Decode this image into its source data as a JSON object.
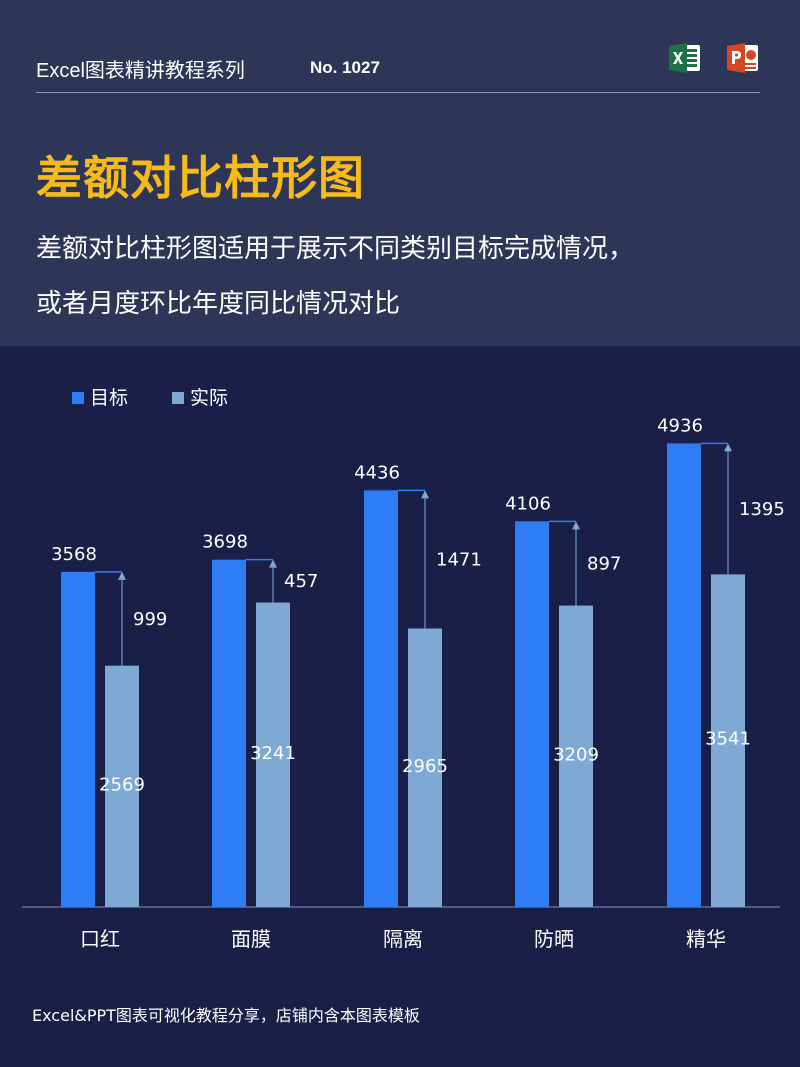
{
  "header": {
    "series_title": "Excel图表精讲教程系列",
    "issue_no": "No. 1027",
    "page_title": "差额对比柱形图",
    "description_line1": "差额对比柱形图适用于展示不同类别目标完成情况，",
    "description_line2": "或者月度环比年度同比情况对比",
    "icons": [
      "excel-icon",
      "powerpoint-icon"
    ]
  },
  "footer": {
    "note": "Excel&PPT图表可视化教程分享，店铺内含本图表模板"
  },
  "colors": {
    "background": "#1a1f48",
    "header_bg": "#2d3656",
    "title": "#f6bb1b",
    "target": "#2e7cf6",
    "actual": "#7fa9d5",
    "arrow": "#7fa9d5"
  },
  "chart_data": {
    "type": "bar",
    "categories": [
      "口红",
      "面膜",
      "隔离",
      "防晒",
      "精华"
    ],
    "series": [
      {
        "name": "目标",
        "values": [
          3568,
          3698,
          4436,
          4106,
          4936
        ]
      },
      {
        "name": "实际",
        "values": [
          2569,
          3241,
          2965,
          3209,
          3541
        ]
      }
    ],
    "differences": [
      999,
      457,
      1471,
      897,
      1395
    ],
    "legend_position": "top-left",
    "ylim": [
      0,
      5600
    ],
    "grid": false,
    "xlabel": "",
    "ylabel": ""
  }
}
